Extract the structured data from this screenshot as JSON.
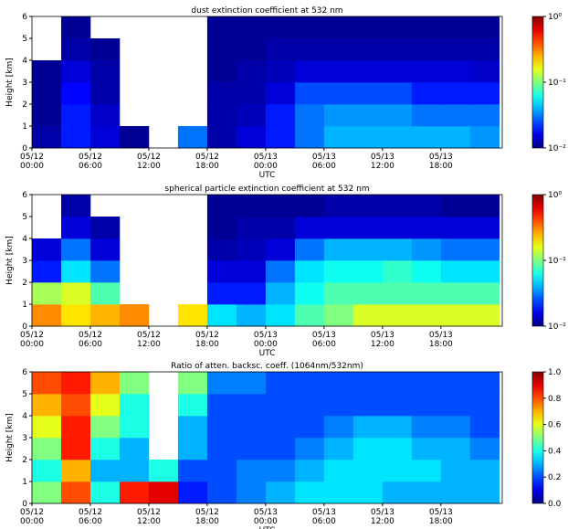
{
  "chart_data": [
    {
      "type": "heatmap",
      "title": "dust extinction coefficient at 532 nm",
      "ylabel": "Height [km]",
      "xlabel": "UTC",
      "colormap": "jet",
      "x_bins": [
        0,
        3,
        6,
        9,
        12,
        15,
        18,
        21,
        24,
        27,
        30,
        33,
        36,
        39,
        42,
        45,
        48
      ],
      "y_bins": [
        0,
        1,
        2,
        3,
        4,
        5,
        6
      ],
      "values": [
        [
          0.012,
          0.02,
          0.015,
          0.011,
          null,
          0.03,
          0.012,
          0.015,
          0.02,
          0.03,
          0.04,
          0.04,
          0.04,
          0.04,
          0.04,
          0.035
        ],
        [
          0.011,
          0.02,
          0.014,
          null,
          null,
          null,
          0.012,
          0.013,
          0.02,
          0.03,
          0.035,
          0.035,
          0.035,
          0.03,
          0.03,
          0.03
        ],
        [
          0.011,
          0.018,
          0.012,
          null,
          null,
          null,
          0.012,
          0.012,
          0.015,
          0.025,
          0.025,
          0.025,
          0.025,
          0.02,
          0.02,
          0.02
        ],
        [
          0.011,
          0.015,
          0.012,
          null,
          null,
          null,
          0.011,
          0.012,
          0.013,
          0.015,
          0.015,
          0.015,
          0.015,
          0.015,
          0.015,
          0.014
        ],
        [
          null,
          0.012,
          0.011,
          null,
          null,
          null,
          0.011,
          0.011,
          0.012,
          0.012,
          0.012,
          0.012,
          0.012,
          0.012,
          0.012,
          0.012
        ],
        [
          null,
          0.011,
          null,
          null,
          null,
          null,
          0.011,
          0.011,
          0.011,
          0.011,
          0.011,
          0.011,
          0.011,
          0.011,
          0.011,
          0.011
        ]
      ],
      "xlim": [
        0,
        48.3
      ],
      "xticks": [
        {
          "value": 0,
          "label": "05/12 00:00"
        },
        {
          "value": 6,
          "label": "05/12 06:00"
        },
        {
          "value": 12,
          "label": "05/12 12:00"
        },
        {
          "value": 18,
          "label": "05/12 18:00"
        },
        {
          "value": 24,
          "label": "05/13 00:00"
        },
        {
          "value": 30,
          "label": "05/13 06:00"
        },
        {
          "value": 36,
          "label": "05/13 12:00"
        },
        {
          "value": 42,
          "label": "05/13 18:00"
        }
      ],
      "ylim": [
        0,
        6
      ],
      "yticks": [
        0,
        1,
        2,
        3,
        4,
        5,
        6
      ],
      "colorbar": {
        "scale": "log",
        "lim": [
          0.01,
          1
        ],
        "ticks": [
          {
            "value": 1,
            "label": "10⁰"
          },
          {
            "value": 0.1,
            "label": "10⁻¹"
          },
          {
            "value": 0.01,
            "label": "10⁻²"
          }
        ]
      }
    },
    {
      "type": "heatmap",
      "title": "spherical particle extinction coefficient at 532 nm",
      "ylabel": "Height [km]",
      "xlabel": "UTC",
      "colormap": "jet",
      "x_bins": [
        0,
        3,
        6,
        9,
        12,
        15,
        18,
        21,
        24,
        27,
        30,
        33,
        36,
        39,
        42,
        45,
        48
      ],
      "y_bins": [
        0,
        1,
        2,
        3,
        4,
        5,
        6
      ],
      "values": [
        [
          0.3,
          0.2,
          0.25,
          0.3,
          null,
          0.2,
          0.05,
          0.04,
          0.05,
          0.08,
          0.1,
          0.15,
          0.15,
          0.15,
          0.15,
          0.15
        ],
        [
          0.12,
          0.15,
          0.08,
          null,
          null,
          null,
          0.02,
          0.02,
          0.04,
          0.06,
          0.08,
          0.08,
          0.08,
          0.08,
          0.08,
          0.08
        ],
        [
          0.02,
          0.05,
          0.03,
          null,
          null,
          null,
          0.015,
          0.015,
          0.03,
          0.05,
          0.06,
          0.06,
          0.07,
          0.06,
          0.05,
          0.05
        ],
        [
          0.015,
          0.03,
          0.015,
          null,
          null,
          null,
          0.012,
          0.013,
          0.015,
          0.03,
          0.04,
          0.04,
          0.04,
          0.035,
          0.03,
          0.03
        ],
        [
          null,
          0.015,
          0.012,
          null,
          null,
          null,
          0.011,
          0.012,
          0.012,
          0.015,
          0.015,
          0.015,
          0.015,
          0.015,
          0.015,
          0.015
        ],
        [
          null,
          0.012,
          null,
          null,
          null,
          null,
          0.011,
          0.011,
          0.011,
          0.011,
          0.012,
          0.012,
          0.012,
          0.012,
          0.011,
          0.011
        ]
      ],
      "xlim": [
        0,
        48.3
      ],
      "xticks": [
        {
          "value": 0,
          "label": "05/12 00:00"
        },
        {
          "value": 6,
          "label": "05/12 06:00"
        },
        {
          "value": 12,
          "label": "05/12 12:00"
        },
        {
          "value": 18,
          "label": "05/12 18:00"
        },
        {
          "value": 24,
          "label": "05/13 00:00"
        },
        {
          "value": 30,
          "label": "05/13 06:00"
        },
        {
          "value": 36,
          "label": "05/13 12:00"
        },
        {
          "value": 42,
          "label": "05/13 18:00"
        }
      ],
      "ylim": [
        0,
        6
      ],
      "yticks": [
        0,
        1,
        2,
        3,
        4,
        5,
        6
      ],
      "colorbar": {
        "scale": "log",
        "lim": [
          0.01,
          1
        ],
        "ticks": [
          {
            "value": 1,
            "label": "10⁰"
          },
          {
            "value": 0.1,
            "label": "10⁻¹"
          },
          {
            "value": 0.01,
            "label": "10⁻²"
          }
        ]
      }
    },
    {
      "type": "heatmap",
      "title": "Ratio of atten. backsc. coeff. (1064nm/532nm)",
      "ylabel": "Height [km]",
      "xlabel": "UTC",
      "colormap": "jet",
      "x_bins": [
        0,
        3,
        6,
        9,
        12,
        15,
        18,
        21,
        24,
        27,
        30,
        33,
        36,
        39,
        42,
        45,
        48
      ],
      "y_bins": [
        0,
        1,
        2,
        3,
        4,
        5,
        6
      ],
      "values": [
        [
          0.5,
          0.8,
          0.4,
          0.85,
          0.9,
          0.15,
          0.2,
          0.25,
          0.3,
          0.35,
          0.35,
          0.35,
          0.3,
          0.3,
          0.3,
          0.3
        ],
        [
          0.4,
          0.7,
          0.3,
          0.3,
          0.4,
          0.2,
          0.2,
          0.25,
          0.25,
          0.3,
          0.35,
          0.35,
          0.35,
          0.35,
          0.3,
          0.3
        ],
        [
          0.5,
          0.85,
          0.4,
          0.3,
          null,
          0.3,
          0.2,
          0.2,
          0.2,
          0.25,
          0.3,
          0.35,
          0.35,
          0.3,
          0.3,
          0.25
        ],
        [
          0.6,
          0.85,
          0.5,
          0.4,
          null,
          0.3,
          0.2,
          0.2,
          0.2,
          0.2,
          0.25,
          0.3,
          0.3,
          0.25,
          0.25,
          0.2
        ],
        [
          0.7,
          0.8,
          0.6,
          0.4,
          null,
          0.4,
          0.2,
          0.2,
          0.2,
          0.2,
          0.2,
          0.2,
          0.2,
          0.2,
          0.2,
          0.2
        ],
        [
          0.8,
          0.85,
          0.7,
          0.5,
          null,
          0.5,
          0.25,
          0.25,
          0.2,
          0.2,
          0.2,
          0.2,
          0.2,
          0.2,
          0.2,
          0.2
        ]
      ],
      "xlim": [
        0,
        48.3
      ],
      "xticks": [
        {
          "value": 0,
          "label": "05/12 00:00"
        },
        {
          "value": 6,
          "label": "05/12 06:00"
        },
        {
          "value": 12,
          "label": "05/12 12:00"
        },
        {
          "value": 18,
          "label": "05/12 18:00"
        },
        {
          "value": 24,
          "label": "05/13 00:00"
        },
        {
          "value": 30,
          "label": "05/13 06:00"
        },
        {
          "value": 36,
          "label": "05/13 12:00"
        },
        {
          "value": 42,
          "label": "05/13 18:00"
        }
      ],
      "ylim": [
        0,
        6
      ],
      "yticks": [
        0,
        1,
        2,
        3,
        4,
        5,
        6
      ],
      "colorbar": {
        "scale": "linear",
        "lim": [
          0,
          1
        ],
        "ticks": [
          {
            "value": 0,
            "label": "0.0"
          },
          {
            "value": 0.2,
            "label": "0.2"
          },
          {
            "value": 0.4,
            "label": "0.4"
          },
          {
            "value": 0.6,
            "label": "0.6"
          },
          {
            "value": 0.8,
            "label": "0.8"
          },
          {
            "value": 1,
            "label": "1.0"
          }
        ]
      }
    }
  ]
}
